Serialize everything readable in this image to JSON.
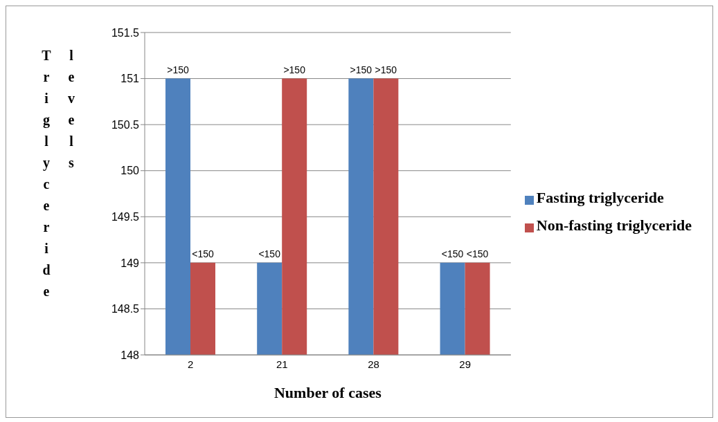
{
  "chart_data": {
    "type": "bar",
    "xlabel": "Number of cases",
    "ylabel": "Triglyceride levels",
    "categories": [
      "2",
      "21",
      "28",
      "29"
    ],
    "series": [
      {
        "name": "Fasting triglyceride",
        "color": "#4f81bd",
        "values": [
          151,
          149,
          151,
          149
        ],
        "value_labels": [
          ">150",
          "<150",
          ">150",
          "<150"
        ]
      },
      {
        "name": "Non-fasting triglyceride",
        "color": "#c0504d",
        "values": [
          149,
          151,
          151,
          149
        ],
        "value_labels": [
          "<150",
          ">150",
          ">150",
          "<150"
        ]
      }
    ],
    "ylim": [
      148,
      151.5
    ],
    "yticks": [
      148,
      148.5,
      149,
      149.5,
      150,
      150.5,
      151,
      151.5
    ],
    "grid": "y",
    "legend": "right"
  }
}
